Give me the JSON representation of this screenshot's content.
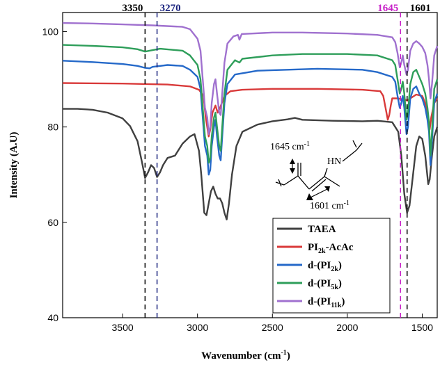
{
  "chart_data": {
    "type": "line",
    "xlabel": "Wavenumber (cm",
    "xlabel_sup": "-1",
    "xlabel_tail": ")",
    "ylabel": "Intensity (A.U)",
    "xlim": [
      3900,
      1400
    ],
    "ylim": [
      40,
      104
    ],
    "x_ticks": [
      3500,
      3000,
      2500,
      2000,
      1500
    ],
    "y_ticks": [
      40,
      60,
      80,
      100
    ],
    "x_tick_labels": [
      "3500",
      "3000",
      "2500",
      "2000",
      "1500"
    ],
    "y_tick_labels": [
      "40",
      "60",
      "80",
      "100"
    ],
    "reference_lines": [
      {
        "x": 3350,
        "label": "3350",
        "color": "#000000"
      },
      {
        "x": 3270,
        "label": "3270",
        "color": "#1a237e"
      },
      {
        "x": 1645,
        "label": "1645",
        "color": "#c71fc7"
      },
      {
        "x": 1601,
        "label": "1601",
        "color": "#000000"
      }
    ],
    "inset_labels": {
      "carbonyl": "1645 cm",
      "alkene": "1601 cm",
      "superscript": "-1",
      "amine": "HN"
    },
    "series": [
      {
        "name": "TAEA",
        "name_sub": "",
        "name_tail": "",
        "prefix": "TAEA",
        "color": "#404040",
        "points": [
          [
            3900,
            83.8
          ],
          [
            3800,
            83.8
          ],
          [
            3700,
            83.6
          ],
          [
            3600,
            83.0
          ],
          [
            3500,
            81.8
          ],
          [
            3450,
            80.2
          ],
          [
            3400,
            77.0
          ],
          [
            3370,
            72.5
          ],
          [
            3350,
            69.3
          ],
          [
            3330,
            70.5
          ],
          [
            3310,
            72.0
          ],
          [
            3290,
            71.4
          ],
          [
            3270,
            69.5
          ],
          [
            3250,
            70.5
          ],
          [
            3230,
            72.0
          ],
          [
            3200,
            73.5
          ],
          [
            3150,
            74.0
          ],
          [
            3100,
            76.5
          ],
          [
            3050,
            78.0
          ],
          [
            3020,
            78.5
          ],
          [
            2990,
            75.0
          ],
          [
            2975,
            70.0
          ],
          [
            2955,
            62.0
          ],
          [
            2940,
            61.5
          ],
          [
            2925,
            64.0
          ],
          [
            2910,
            66.5
          ],
          [
            2895,
            67.5
          ],
          [
            2880,
            66.0
          ],
          [
            2865,
            65.0
          ],
          [
            2850,
            65.0
          ],
          [
            2835,
            64.0
          ],
          [
            2820,
            62.0
          ],
          [
            2805,
            60.6
          ],
          [
            2790,
            64.0
          ],
          [
            2770,
            70.0
          ],
          [
            2740,
            76.0
          ],
          [
            2700,
            79.0
          ],
          [
            2600,
            80.5
          ],
          [
            2500,
            81.2
          ],
          [
            2400,
            81.6
          ],
          [
            2350,
            81.9
          ],
          [
            2300,
            81.5
          ],
          [
            2100,
            81.3
          ],
          [
            1900,
            81.2
          ],
          [
            1800,
            81.3
          ],
          [
            1700,
            81.0
          ],
          [
            1660,
            79.0
          ],
          [
            1640,
            74.0
          ],
          [
            1620,
            66.0
          ],
          [
            1601,
            62.0
          ],
          [
            1585,
            63.5
          ],
          [
            1565,
            69.0
          ],
          [
            1540,
            76.0
          ],
          [
            1520,
            78.0
          ],
          [
            1500,
            77.5
          ],
          [
            1480,
            74.0
          ],
          [
            1460,
            68.0
          ],
          [
            1450,
            69.0
          ],
          [
            1435,
            74.0
          ],
          [
            1420,
            78.0
          ],
          [
            1400,
            80.0
          ]
        ]
      },
      {
        "name": "PI",
        "name_sub": "2k",
        "name_tail": "-AcAc",
        "prefix": "PI",
        "color": "#d93a3a",
        "points": [
          [
            3900,
            89.2
          ],
          [
            3500,
            89.1
          ],
          [
            3200,
            88.9
          ],
          [
            3050,
            88.5
          ],
          [
            2990,
            87.8
          ],
          [
            2960,
            86.5
          ],
          [
            2945,
            82.0
          ],
          [
            2925,
            78.0
          ],
          [
            2915,
            79.5
          ],
          [
            2900,
            83.0
          ],
          [
            2880,
            84.5
          ],
          [
            2865,
            83.0
          ],
          [
            2850,
            84.0
          ],
          [
            2820,
            86.5
          ],
          [
            2780,
            87.5
          ],
          [
            2700,
            87.8
          ],
          [
            2500,
            88.0
          ],
          [
            2200,
            88.0
          ],
          [
            1900,
            87.8
          ],
          [
            1780,
            87.5
          ],
          [
            1760,
            86.5
          ],
          [
            1745,
            84.0
          ],
          [
            1730,
            81.5
          ],
          [
            1720,
            82.5
          ],
          [
            1710,
            84.5
          ],
          [
            1700,
            86.0
          ],
          [
            1680,
            86.0
          ],
          [
            1660,
            86.0
          ],
          [
            1640,
            85.8
          ],
          [
            1620,
            85.8
          ],
          [
            1600,
            85.5
          ],
          [
            1580,
            86.0
          ],
          [
            1540,
            86.8
          ],
          [
            1500,
            86.5
          ],
          [
            1480,
            85.0
          ],
          [
            1460,
            82.0
          ],
          [
            1450,
            79.5
          ],
          [
            1440,
            82.0
          ],
          [
            1420,
            85.0
          ],
          [
            1400,
            86.0
          ]
        ]
      },
      {
        "name": "d-(PI",
        "name_sub": "2k",
        "name_tail": ")",
        "prefix": "d-(PI",
        "color": "#2569c9",
        "points": [
          [
            3900,
            93.9
          ],
          [
            3700,
            93.6
          ],
          [
            3500,
            93.2
          ],
          [
            3400,
            92.8
          ],
          [
            3350,
            92.4
          ],
          [
            3320,
            92.3
          ],
          [
            3300,
            92.6
          ],
          [
            3200,
            93.0
          ],
          [
            3100,
            92.8
          ],
          [
            3050,
            92.0
          ],
          [
            3000,
            90.5
          ],
          [
            2980,
            88.0
          ],
          [
            2965,
            82.0
          ],
          [
            2950,
            76.0
          ],
          [
            2935,
            74.0
          ],
          [
            2925,
            70.0
          ],
          [
            2915,
            71.0
          ],
          [
            2905,
            76.0
          ],
          [
            2890,
            80.0
          ],
          [
            2880,
            81.5
          ],
          [
            2870,
            78.0
          ],
          [
            2855,
            74.0
          ],
          [
            2845,
            73.0
          ],
          [
            2835,
            78.0
          ],
          [
            2820,
            85.0
          ],
          [
            2800,
            89.0
          ],
          [
            2750,
            91.0
          ],
          [
            2600,
            91.8
          ],
          [
            2400,
            92.0
          ],
          [
            2200,
            92.2
          ],
          [
            1900,
            92.0
          ],
          [
            1800,
            91.5
          ],
          [
            1700,
            90.5
          ],
          [
            1680,
            89.5
          ],
          [
            1665,
            86.5
          ],
          [
            1650,
            84.0
          ],
          [
            1640,
            85.0
          ],
          [
            1630,
            86.5
          ],
          [
            1620,
            84.0
          ],
          [
            1605,
            78.5
          ],
          [
            1595,
            80.0
          ],
          [
            1580,
            86.0
          ],
          [
            1560,
            88.0
          ],
          [
            1540,
            88.5
          ],
          [
            1520,
            87.0
          ],
          [
            1500,
            86.0
          ],
          [
            1480,
            84.0
          ],
          [
            1465,
            81.5
          ],
          [
            1455,
            79.0
          ],
          [
            1445,
            72.0
          ],
          [
            1435,
            77.0
          ],
          [
            1420,
            85.0
          ],
          [
            1400,
            87.0
          ]
        ]
      },
      {
        "name": "d-(PI",
        "name_sub": "5k",
        "name_tail": ")",
        "prefix": "d-(PI",
        "color": "#2e9e5a",
        "points": [
          [
            3900,
            97.2
          ],
          [
            3700,
            97.0
          ],
          [
            3500,
            96.7
          ],
          [
            3400,
            96.3
          ],
          [
            3350,
            95.8
          ],
          [
            3320,
            96.0
          ],
          [
            3250,
            96.4
          ],
          [
            3100,
            96.0
          ],
          [
            3050,
            95.0
          ],
          [
            3000,
            93.0
          ],
          [
            2980,
            90.0
          ],
          [
            2965,
            84.0
          ],
          [
            2950,
            78.0
          ],
          [
            2935,
            76.0
          ],
          [
            2925,
            72.5
          ],
          [
            2915,
            73.5
          ],
          [
            2905,
            78.0
          ],
          [
            2890,
            82.0
          ],
          [
            2880,
            83.0
          ],
          [
            2870,
            80.0
          ],
          [
            2855,
            76.0
          ],
          [
            2845,
            75.0
          ],
          [
            2835,
            80.0
          ],
          [
            2820,
            87.0
          ],
          [
            2800,
            92.0
          ],
          [
            2750,
            94.0
          ],
          [
            2720,
            93.5
          ],
          [
            2700,
            94.3
          ],
          [
            2500,
            95.0
          ],
          [
            2300,
            95.3
          ],
          [
            2000,
            95.3
          ],
          [
            1800,
            95.0
          ],
          [
            1700,
            94.0
          ],
          [
            1680,
            93.0
          ],
          [
            1665,
            90.0
          ],
          [
            1650,
            87.0
          ],
          [
            1640,
            88.0
          ],
          [
            1630,
            89.5
          ],
          [
            1620,
            87.0
          ],
          [
            1605,
            81.5
          ],
          [
            1595,
            83.0
          ],
          [
            1580,
            89.0
          ],
          [
            1560,
            91.5
          ],
          [
            1540,
            92.0
          ],
          [
            1520,
            90.5
          ],
          [
            1500,
            89.0
          ],
          [
            1480,
            87.0
          ],
          [
            1465,
            84.0
          ],
          [
            1455,
            81.0
          ],
          [
            1445,
            74.0
          ],
          [
            1435,
            79.0
          ],
          [
            1420,
            88.0
          ],
          [
            1400,
            90.0
          ]
        ]
      },
      {
        "name": "d-(PI",
        "name_sub": "11k",
        "name_tail": ")",
        "prefix": "d-(PI",
        "color": "#a071cf",
        "points": [
          [
            3900,
            101.8
          ],
          [
            3700,
            101.7
          ],
          [
            3500,
            101.5
          ],
          [
            3300,
            101.3
          ],
          [
            3100,
            101.0
          ],
          [
            3050,
            100.5
          ],
          [
            3000,
            98.5
          ],
          [
            2980,
            96.0
          ],
          [
            2965,
            90.0
          ],
          [
            2950,
            84.0
          ],
          [
            2935,
            82.0
          ],
          [
            2925,
            78.5
          ],
          [
            2915,
            80.0
          ],
          [
            2905,
            85.0
          ],
          [
            2890,
            89.0
          ],
          [
            2880,
            90.0
          ],
          [
            2870,
            87.0
          ],
          [
            2855,
            83.0
          ],
          [
            2845,
            82.5
          ],
          [
            2835,
            87.0
          ],
          [
            2820,
            93.5
          ],
          [
            2800,
            97.5
          ],
          [
            2760,
            99.0
          ],
          [
            2730,
            99.3
          ],
          [
            2720,
            98.3
          ],
          [
            2705,
            99.5
          ],
          [
            2500,
            99.8
          ],
          [
            2300,
            99.8
          ],
          [
            2000,
            99.6
          ],
          [
            1800,
            99.3
          ],
          [
            1700,
            98.8
          ],
          [
            1680,
            97.8
          ],
          [
            1665,
            95.5
          ],
          [
            1650,
            92.5
          ],
          [
            1640,
            93.5
          ],
          [
            1630,
            95.0
          ],
          [
            1620,
            93.0
          ],
          [
            1605,
            91.0
          ],
          [
            1595,
            92.0
          ],
          [
            1580,
            96.0
          ],
          [
            1560,
            97.5
          ],
          [
            1540,
            98.0
          ],
          [
            1520,
            97.5
          ],
          [
            1500,
            96.8
          ],
          [
            1480,
            95.5
          ],
          [
            1465,
            93.0
          ],
          [
            1455,
            90.0
          ],
          [
            1445,
            86.0
          ],
          [
            1435,
            89.0
          ],
          [
            1420,
            95.0
          ],
          [
            1400,
            97.0
          ]
        ]
      }
    ]
  }
}
